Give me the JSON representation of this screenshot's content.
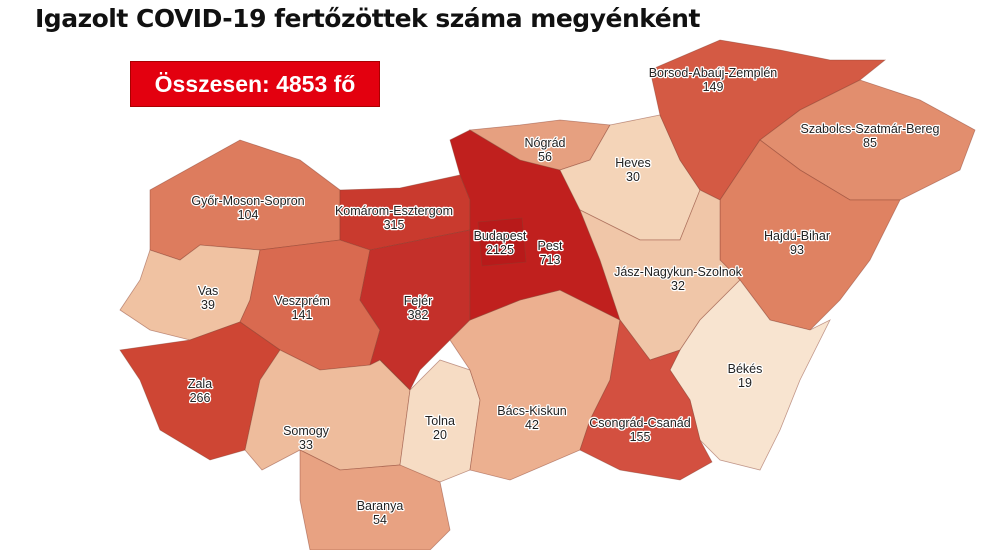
{
  "title": "Igazolt COVID-19 fertőzöttek száma megyénként",
  "total_label": "Összesen: 4853 fő",
  "counties": [
    {
      "name": "Győr-Moson-Sopron",
      "value": "104",
      "color": "#dd7c5e"
    },
    {
      "name": "Komárom-Esztergom",
      "value": "315",
      "color": "#c93a2e"
    },
    {
      "name": "Vas",
      "value": "39",
      "color": "#f0c2a2"
    },
    {
      "name": "Veszprém",
      "value": "141",
      "color": "#d96a50"
    },
    {
      "name": "Fejér",
      "value": "382",
      "color": "#c4302a"
    },
    {
      "name": "Zala",
      "value": "266",
      "color": "#ce4634"
    },
    {
      "name": "Somogy",
      "value": "33",
      "color": "#eebc9c"
    },
    {
      "name": "Tolna",
      "value": "20",
      "color": "#f6dcc4"
    },
    {
      "name": "Baranya",
      "value": "54",
      "color": "#e8a282"
    },
    {
      "name": "Bács-Kiskun",
      "value": "42",
      "color": "#ecb090"
    },
    {
      "name": "Pest",
      "value": "713",
      "color": "#c0201e"
    },
    {
      "name": "Budapest",
      "value": "2125",
      "color": "#b81a1a"
    },
    {
      "name": "Nógrád",
      "value": "56",
      "color": "#e6a080"
    },
    {
      "name": "Heves",
      "value": "30",
      "color": "#f4d4b8"
    },
    {
      "name": "Borsod-Abaúj-Zemplén",
      "value": "149",
      "color": "#d45a44"
    },
    {
      "name": "Szabolcs-Szatmár-Bereg",
      "value": "85",
      "color": "#e28e6e"
    },
    {
      "name": "Hajdú-Bihar",
      "value": "93",
      "color": "#df8262"
    },
    {
      "name": "Jász-Nagykun-Szolnok",
      "value": "32",
      "color": "#f0c6a8"
    },
    {
      "name": "Békés",
      "value": "19",
      "color": "#f8e4d0"
    },
    {
      "name": "Csongrád-Csanád",
      "value": "155",
      "color": "#d35040"
    }
  ]
}
